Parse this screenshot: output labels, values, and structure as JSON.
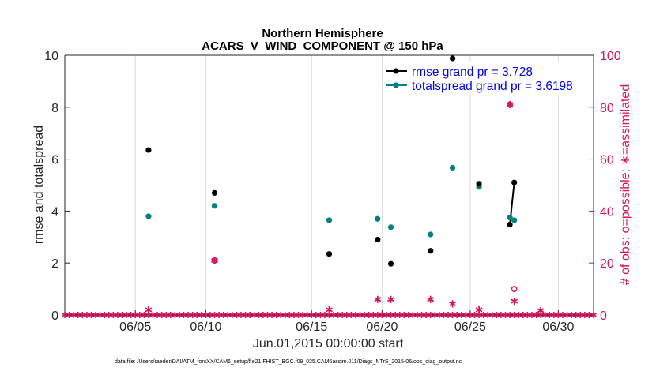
{
  "chart_data": {
    "type": "scatter",
    "title": "Northern Hemisphere",
    "subtitle": "ACARS_V_WIND_COMPONENT @ 150 hPa",
    "xlabel": "Jun.01,2015 00:00:00 start",
    "ylabel": "rmse and totalspread",
    "y2label": "# of obs: o=possible; ∗=assimilated",
    "xlim": [
      1,
      31
    ],
    "ylim": [
      0,
      10
    ],
    "y2lim": [
      0,
      100
    ],
    "x_ticks": [
      5,
      9,
      15,
      19,
      24,
      29
    ],
    "x_tick_labels": [
      "06/05",
      "06/10",
      "06/15",
      "06/20",
      "06/25",
      "06/30"
    ],
    "y_ticks": [
      "0",
      "2",
      "4",
      "6",
      "8",
      "10"
    ],
    "y2_ticks": [
      "0",
      "20",
      "40",
      "60",
      "80",
      "100"
    ],
    "legend_position": "top-right",
    "colors": {
      "rmse": "#000000",
      "totalspread": "#00807f",
      "obs": "#d4145a",
      "legend_text": "#0000ee"
    },
    "series": [
      {
        "name": "rmse grand pr = 3.728",
        "points": [
          [
            5.75,
            6.35
          ],
          [
            9.5,
            4.7
          ],
          [
            16,
            2.35
          ],
          [
            18.75,
            2.9
          ],
          [
            19.5,
            1.97
          ],
          [
            21.75,
            2.47
          ],
          [
            23,
            9.88
          ],
          [
            24.5,
            5.05
          ],
          [
            26.25,
            3.48
          ],
          [
            26.5,
            5.1
          ]
        ],
        "line_segments": [
          [
            [
              26.25,
              3.48
            ],
            [
              26.5,
              5.1
            ]
          ]
        ]
      },
      {
        "name": "totalspread grand pr = 3.6198",
        "points": [
          [
            5.75,
            3.8
          ],
          [
            9.5,
            4.2
          ],
          [
            16,
            3.65
          ],
          [
            18.75,
            3.7
          ],
          [
            19.5,
            3.38
          ],
          [
            21.75,
            3.1
          ],
          [
            23,
            5.67
          ],
          [
            24.5,
            4.93
          ],
          [
            26.25,
            3.75
          ],
          [
            26.5,
            3.65
          ]
        ]
      },
      {
        "name": "possible obs (o)",
        "axis": "right",
        "points": [
          [
            9.5,
            21
          ],
          [
            26.5,
            10
          ],
          [
            26.25,
            81
          ]
        ]
      },
      {
        "name": "assimilated obs (*)",
        "axis": "right",
        "points": [
          [
            9.5,
            21
          ],
          [
            26.25,
            81
          ],
          [
            26.5,
            5.3
          ],
          [
            18.75,
            6
          ],
          [
            19.5,
            6
          ],
          [
            21.75,
            6
          ],
          [
            23,
            4.3
          ],
          [
            5.75,
            2
          ],
          [
            16,
            2
          ],
          [
            24.5,
            2
          ],
          [
            28,
            1.7
          ]
        ]
      }
    ]
  },
  "footer": {
    "data_file": "data file: /Users/raeder/DAI/ATM_forcXX/CAM6_setup/f.e21.FHIST_BGC.f09_025.CAM6assim.011/Diags_NTrS_2015-06/obs_diag_output.nc"
  }
}
